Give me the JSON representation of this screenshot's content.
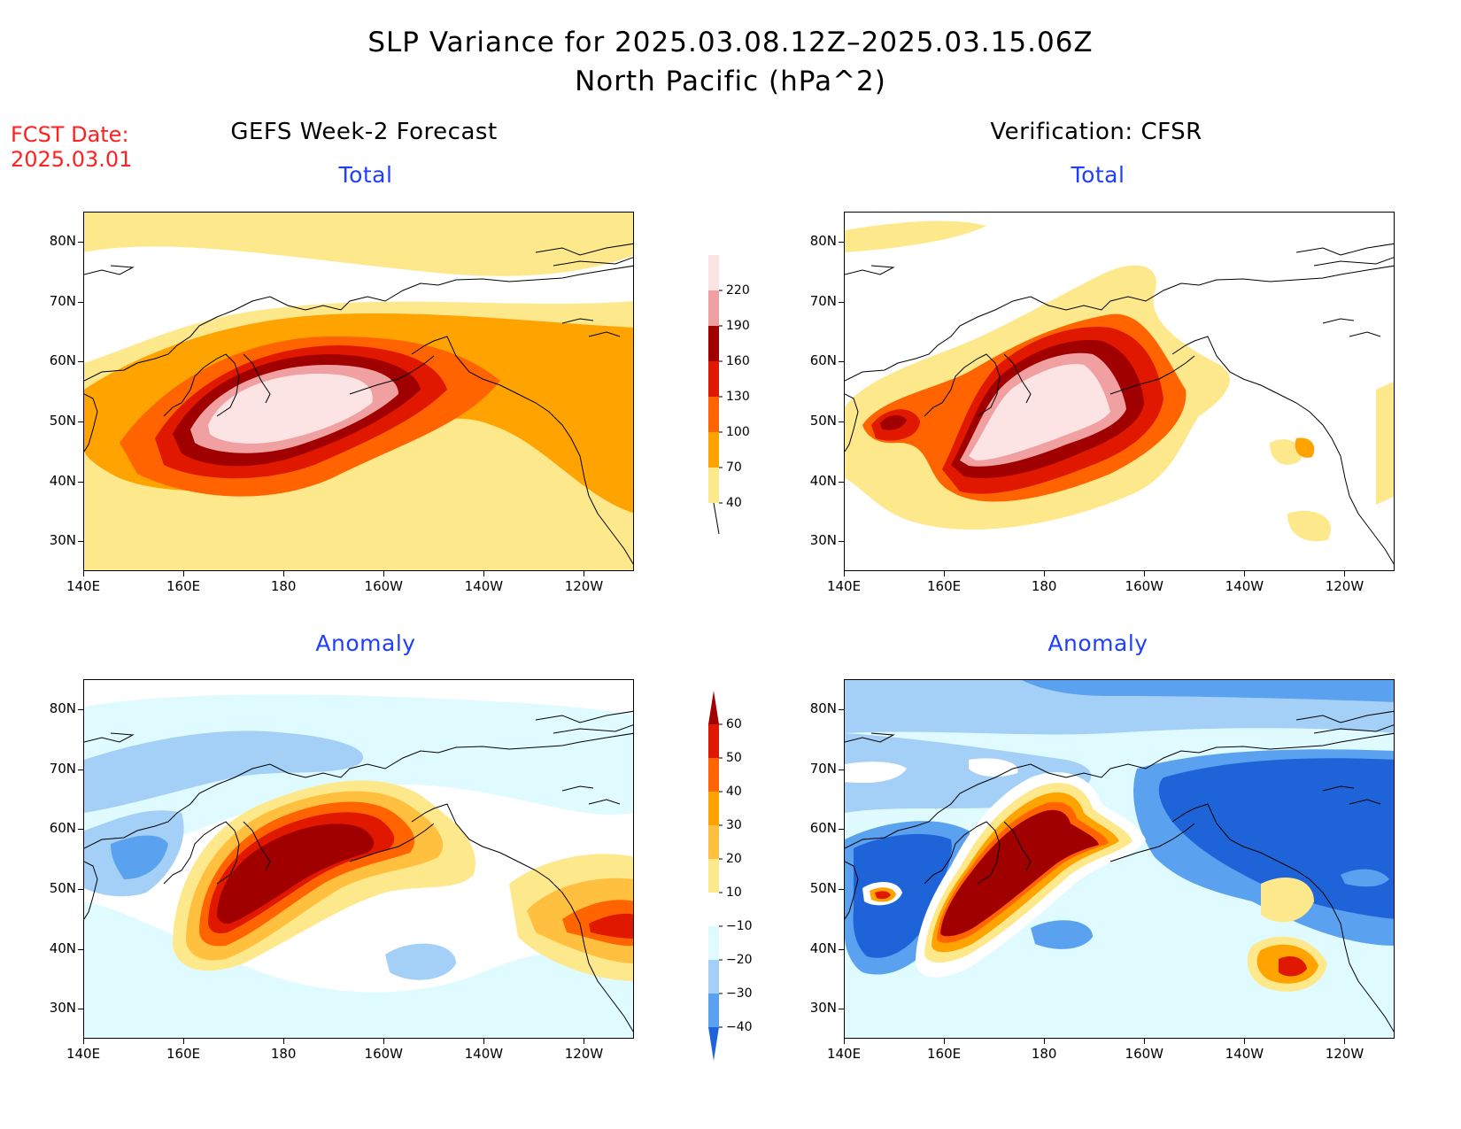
{
  "title": {
    "line1": "SLP Variance for 2025.03.08.12Z–2025.03.15.06Z",
    "line2": "North Pacific (hPa^2)"
  },
  "fcst": {
    "label": "FCST Date:",
    "date": "2025.03.01"
  },
  "columns": {
    "left": "GEFS Week-2 Forecast",
    "right": "Verification: CFSR"
  },
  "panels": [
    {
      "id": "fcst-total",
      "subtitle": "Total"
    },
    {
      "id": "verif-total",
      "subtitle": "Total"
    },
    {
      "id": "fcst-anomaly",
      "subtitle": "Anomaly"
    },
    {
      "id": "verif-anomaly",
      "subtitle": "Anomaly"
    }
  ],
  "axes": {
    "y_ticks": [
      "80N",
      "70N",
      "60N",
      "50N",
      "40N",
      "30N"
    ],
    "x_ticks": [
      "140E",
      "160E",
      "180",
      "160W",
      "140W",
      "120W"
    ],
    "lat_range": [
      25,
      85
    ],
    "lon_range": [
      140,
      250
    ]
  },
  "colorbars": {
    "total": {
      "levels": [
        "40",
        "70",
        "100",
        "130",
        "160",
        "190",
        "220"
      ],
      "colors": [
        "#fee88c",
        "#ffa300",
        "#ff6400",
        "#e01800",
        "#a00000",
        "#f0a0a0",
        "#fde4e4"
      ]
    },
    "anomaly": {
      "levels": [
        "60",
        "50",
        "40",
        "30",
        "20",
        "10",
        "−10",
        "−20",
        "−30",
        "−40"
      ],
      "colors_top_to_bottom": [
        "#a00000",
        "#e01800",
        "#ff6400",
        "#ffa300",
        "#ffc040",
        "#fee88c",
        "#ffffff",
        "#e0fbff",
        "#a4d0f8",
        "#5aa2ef",
        "#1e64d8"
      ]
    }
  }
}
